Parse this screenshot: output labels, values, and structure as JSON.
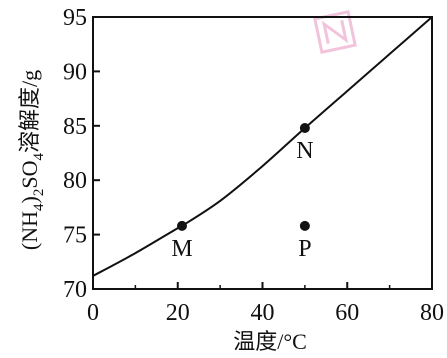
{
  "chart_data": {
    "type": "line",
    "xlabel": "温度/°C",
    "ylabel_parts": [
      "(NH",
      "4",
      ")",
      "2",
      "SO",
      "4",
      "溶解度/g"
    ],
    "xlim": [
      0,
      80
    ],
    "ylim": [
      70,
      95
    ],
    "xticks": [
      0,
      20,
      40,
      60,
      80
    ],
    "yticks": [
      70,
      75,
      80,
      85,
      90,
      95
    ],
    "grid": false,
    "curve": {
      "x": [
        0,
        10,
        20,
        21,
        30,
        40,
        50,
        60,
        70,
        80
      ],
      "y": [
        71.2,
        73.3,
        75.6,
        75.8,
        78.1,
        81.3,
        84.8,
        88.2,
        91.6,
        95.0
      ]
    },
    "points": [
      {
        "label": "M",
        "x": 21,
        "y": 75.8
      },
      {
        "label": "N",
        "x": 50,
        "y": 84.8
      },
      {
        "label": "P",
        "x": 50,
        "y": 75.8
      }
    ]
  },
  "watermark": {
    "description": "faint pink logo stamp in top-right corner"
  },
  "colors": {
    "axis": "#111111",
    "curve": "#111111",
    "points": "#111111",
    "watermark": "#d7579a"
  }
}
